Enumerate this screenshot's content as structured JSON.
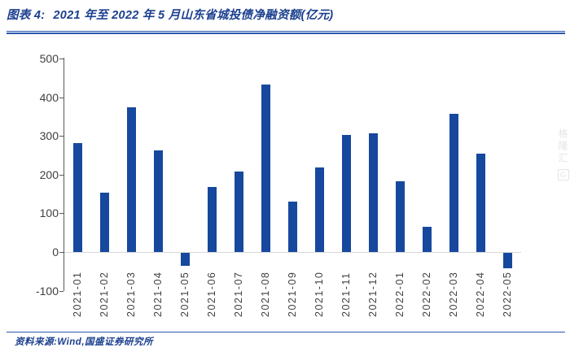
{
  "header": {
    "figure_label": "图表 4:",
    "title": "2021 年至 2022 年 5 月山东省城投债净融资额(亿元)"
  },
  "chart_data": {
    "type": "bar",
    "title": "2021 年至 2022 年 5 月山东省城投债净融资额(亿元)",
    "categories": [
      "2021-01",
      "2021-02",
      "2021-03",
      "2021-04",
      "2021-05",
      "2021-06",
      "2021-07",
      "2021-08",
      "2021-09",
      "2021-10",
      "2021-11",
      "2021-12",
      "2022-01",
      "2022-02",
      "2022-03",
      "2022-04",
      "2022-05"
    ],
    "values": [
      281,
      153,
      373,
      263,
      -33,
      169,
      209,
      433,
      131,
      219,
      303,
      306,
      182,
      66,
      358,
      255,
      -40
    ],
    "xlabel": "",
    "ylabel": "",
    "ylim": [
      -100,
      500
    ],
    "yticks": [
      500,
      400,
      300,
      200,
      100,
      0,
      -100
    ],
    "grid": false,
    "legend": "none",
    "bar_color": "#16489e"
  },
  "footer": {
    "source": "资料来源:Wind,国盛证券研究所"
  },
  "watermark": {
    "text": "格隆汇",
    "logo": "G"
  },
  "colors": {
    "accent_navy": "#1b3f8f",
    "rule_blue": "#2b57ad",
    "bar_blue": "#16489e",
    "axis_gray": "#595959",
    "tick_text": "#404040",
    "zero_line": "#d9d9d9"
  }
}
